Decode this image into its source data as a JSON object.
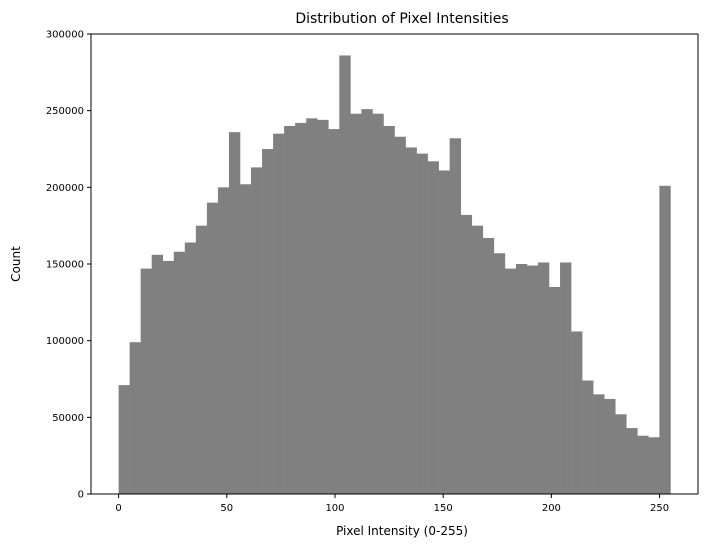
{
  "chart_data": {
    "type": "bar",
    "title": "Distribution of Pixel Intensities",
    "xlabel": "Pixel Intensity (0-255)",
    "ylabel": "Count",
    "xlim": [
      -12.75,
      267.75
    ],
    "ylim": [
      0,
      300000
    ],
    "xticks": [
      0,
      50,
      100,
      150,
      200,
      250
    ],
    "yticks": [
      0,
      50000,
      100000,
      150000,
      200000,
      250000,
      300000
    ],
    "bar_color": "#808080",
    "grid": false,
    "legend": "none",
    "bin_edges": [
      0,
      5.1,
      10.2,
      15.3,
      20.4,
      25.5,
      30.6,
      35.7,
      40.8,
      45.9,
      51,
      56.1,
      61.2,
      66.3,
      71.4,
      76.5,
      81.6,
      86.7,
      91.8,
      96.9,
      102,
      107.1,
      112.2,
      117.3,
      122.4,
      127.5,
      132.6,
      137.7,
      142.8,
      147.9,
      153,
      158.1,
      163.2,
      168.3,
      173.4,
      178.5,
      183.6,
      188.7,
      193.8,
      198.9,
      204,
      209.1,
      214.2,
      219.3,
      224.4,
      229.5,
      234.6,
      239.7,
      244.8,
      249.9,
      255
    ],
    "values": [
      71000,
      99000,
      147000,
      156000,
      152000,
      158000,
      164000,
      175000,
      190000,
      200000,
      236000,
      202000,
      213000,
      225000,
      235000,
      240000,
      242000,
      245000,
      244000,
      238000,
      286000,
      248000,
      251000,
      248000,
      240000,
      233000,
      226000,
      222000,
      217000,
      211000,
      232000,
      182000,
      175000,
      167000,
      157000,
      147000,
      150000,
      149000,
      151000,
      135000,
      151000,
      106000,
      74000,
      65000,
      62000,
      52000,
      43000,
      38000,
      37000,
      201000
    ]
  }
}
